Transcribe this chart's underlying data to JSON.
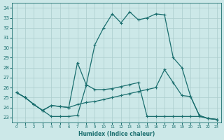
{
  "xlabel": "Humidex (Indice chaleur)",
  "xlim": [
    -0.5,
    23.5
  ],
  "ylim": [
    22.5,
    34.5
  ],
  "yticks": [
    23,
    24,
    25,
    26,
    27,
    28,
    29,
    30,
    31,
    32,
    33,
    34
  ],
  "xticks": [
    0,
    1,
    2,
    3,
    4,
    5,
    6,
    7,
    8,
    9,
    10,
    11,
    12,
    13,
    14,
    15,
    16,
    17,
    18,
    19,
    20,
    21,
    22,
    23
  ],
  "bg_color": "#cce8e8",
  "line_color": "#1a6e6e",
  "grid_color": "#aacccc",
  "lines": [
    {
      "x": [
        0,
        1,
        2,
        3,
        4,
        5,
        6,
        7,
        8,
        9,
        10,
        11,
        12,
        13,
        14,
        15,
        16,
        17,
        18,
        19,
        20,
        21,
        22,
        23
      ],
      "y": [
        25.5,
        25.0,
        24.3,
        23.7,
        23.1,
        23.1,
        23.1,
        23.2,
        26.2,
        30.3,
        32.0,
        33.4,
        32.5,
        33.6,
        32.8,
        33.0,
        33.4,
        33.3,
        29.0,
        28.0,
        25.1,
        23.2,
        22.9,
        22.8
      ]
    },
    {
      "x": [
        0,
        1,
        2,
        3,
        4,
        5,
        6,
        7,
        8,
        9,
        10,
        11,
        12,
        13,
        14,
        15,
        16,
        17,
        18,
        19,
        20,
        21,
        22,
        23
      ],
      "y": [
        25.5,
        25.0,
        24.3,
        23.7,
        24.2,
        24.1,
        24.0,
        28.5,
        26.3,
        25.8,
        25.8,
        25.9,
        26.1,
        26.3,
        26.5,
        23.1,
        23.1,
        23.1,
        23.1,
        23.1,
        23.1,
        23.1,
        22.9,
        22.8
      ]
    },
    {
      "x": [
        0,
        1,
        2,
        3,
        4,
        5,
        6,
        7,
        8,
        9,
        10,
        11,
        12,
        13,
        14,
        15,
        16,
        17,
        18,
        19,
        20,
        21,
        22,
        23
      ],
      "y": [
        25.5,
        25.0,
        24.3,
        23.7,
        24.2,
        24.1,
        24.0,
        24.3,
        24.5,
        24.6,
        24.8,
        25.0,
        25.2,
        25.4,
        25.6,
        25.8,
        26.0,
        27.8,
        26.5,
        25.2,
        25.1,
        23.2,
        22.9,
        22.8
      ]
    }
  ]
}
